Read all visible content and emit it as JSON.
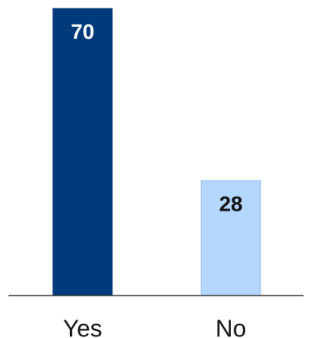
{
  "chart_data": {
    "type": "bar",
    "categories": [
      "Yes",
      "No"
    ],
    "values": [
      70,
      28
    ],
    "data_labels": [
      "70",
      "28"
    ],
    "bar_colors": [
      "#003A7A",
      "#B3D7FF"
    ],
    "label_colors": [
      "#FFFFFF",
      "#111111"
    ],
    "title": "",
    "xlabel": "",
    "ylabel": "",
    "ylim": [
      0,
      70
    ],
    "grid": false,
    "legend": "none"
  }
}
